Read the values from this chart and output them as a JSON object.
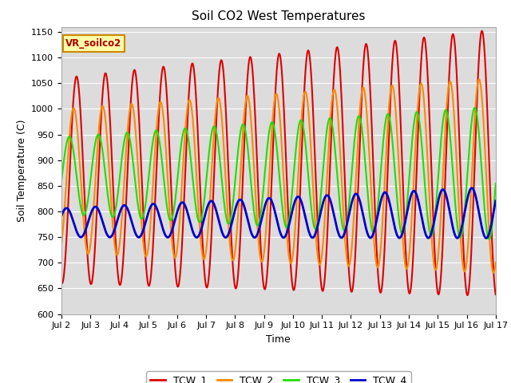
{
  "title": "Soil CO2 West Temperatures",
  "xlabel": "Time",
  "ylabel": "Soil Temperature (C)",
  "ylim": [
    600,
    1160
  ],
  "xlim": [
    0,
    15
  ],
  "xtick_labels": [
    "Jul 2",
    "Jul 3",
    "Jul 4",
    "Jul 5",
    "Jul 6",
    "Jul 7",
    "Jul 8",
    "Jul 9",
    "Jul 10",
    "Jul 11",
    "Jul 12",
    "Jul 13",
    "Jul 14",
    "Jul 15",
    "Jul 16",
    "Jul 17"
  ],
  "xtick_positions": [
    0,
    1,
    2,
    3,
    4,
    5,
    6,
    7,
    8,
    9,
    10,
    11,
    12,
    13,
    14,
    15
  ],
  "series": {
    "TCW_1": {
      "color": "#dd0000",
      "linewidth": 1.5
    },
    "TCW_2": {
      "color": "#ff8800",
      "linewidth": 1.5
    },
    "TCW_3": {
      "color": "#22dd00",
      "linewidth": 1.5
    },
    "TCW_4": {
      "color": "#0000cc",
      "linewidth": 2.0
    }
  },
  "vr_label": "VR_soilco2",
  "plot_bg_color": "#dcdcdc",
  "fig_bg_color": "#ffffff",
  "title_fontsize": 11,
  "grid_color": "#ffffff",
  "yticks": [
    600,
    650,
    700,
    750,
    800,
    850,
    900,
    950,
    1000,
    1050,
    1100,
    1150
  ]
}
